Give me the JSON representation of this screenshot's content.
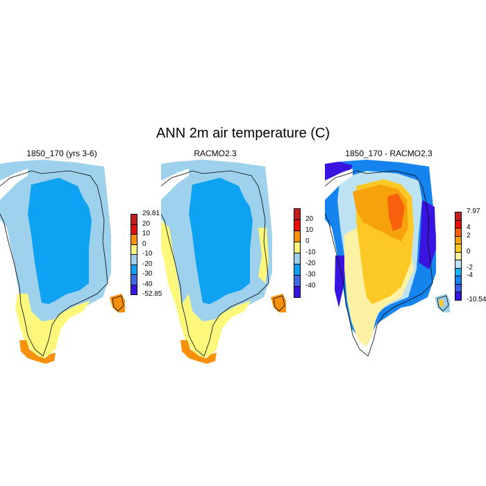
{
  "title": "ANN 2m air temperature (C)",
  "panels": [
    {
      "title": "1850_170 (yrs 3-6)",
      "colorbar": {
        "colors": [
          "#c1211d",
          "#e60d0d",
          "#f7910c",
          "#fdf87c",
          "#9ed2ec",
          "#0fa1f2",
          "#3f6ae4",
          "#3a13e0"
        ],
        "labels": [
          "29.81",
          "20",
          "10",
          "0",
          "-10",
          "-20",
          "-30",
          "-40",
          "-52.85"
        ],
        "label_mode": "boundaries"
      },
      "icons": [
        "greenland-map-icon"
      ]
    },
    {
      "title": "RACMO2.3",
      "colorbar": {
        "colors": [
          "#c1211d",
          "#e60d0d",
          "#f7910c",
          "#fdf87c",
          "#9ed2ec",
          "#0fa1f2",
          "#3f6ae4",
          "#3a13e0"
        ],
        "labels": [
          "20",
          "10",
          "0",
          "-10",
          "-20",
          "-30",
          "-40"
        ],
        "label_mode": "interior"
      },
      "icons": [
        "greenland-map-icon"
      ]
    },
    {
      "title": "1850_170 - RACMO2.3",
      "colorbar": {
        "colors": [
          "#c1211d",
          "#e60d0d",
          "#f7610c",
          "#f7a20c",
          "#fcc825",
          "#fdf2a4",
          "#bde3f2",
          "#1eb2f2",
          "#1684ee",
          "#3a5fe4",
          "#3a13e0"
        ],
        "labels": [
          "7.97",
          "4",
          "2",
          "0",
          "-2",
          "-4",
          "-10.546"
        ],
        "label_positions": [
          0,
          2,
          3,
          5,
          7,
          8,
          11
        ]
      },
      "icons": [
        "greenland-map-icon"
      ]
    }
  ],
  "map_colors": {
    "deep_blue": "#0fa1f2",
    "light_blue": "#9ed2ec",
    "yellow": "#fdf87c",
    "orange": "#f7910c",
    "diff_orange": "#f7a20c",
    "diff_yellow": "#fcc825",
    "diff_pale": "#fdf2a4",
    "diff_blue": "#1684ee",
    "diff_violet": "#3a13e0"
  }
}
